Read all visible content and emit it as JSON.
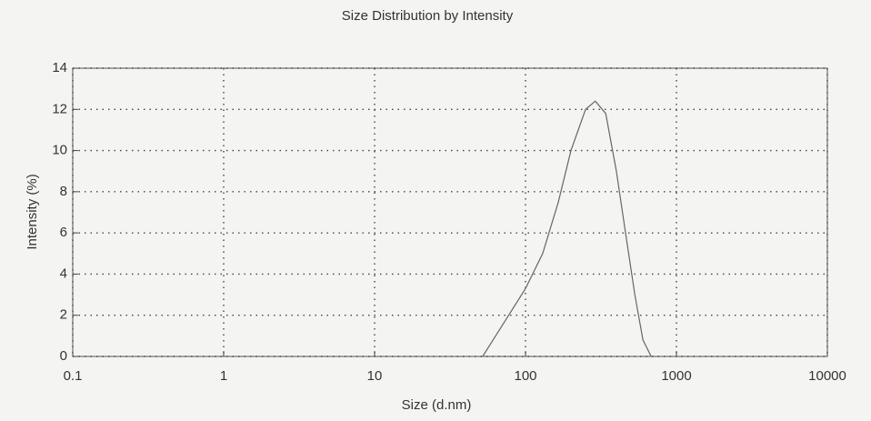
{
  "chart_data": {
    "type": "line",
    "title": "Size Distribution by Intensity",
    "x_label": "Size (d.nm)",
    "y_label": "Intensity (%)",
    "x_scale": "log",
    "grid": true,
    "xlim": [
      0.1,
      10000
    ],
    "xticks": [
      0.1,
      1,
      10,
      100,
      1000,
      10000
    ],
    "ylim": [
      0,
      14
    ],
    "yticks": [
      0,
      2,
      4,
      6,
      8,
      10,
      12,
      14
    ],
    "series": [
      {
        "name": "Intensity",
        "color": "#666666",
        "x": [
          52,
          70,
          100,
          130,
          165,
          200,
          250,
          290,
          340,
          400,
          460,
          530,
          600,
          680
        ],
        "values": [
          0,
          1.5,
          3.3,
          5,
          7.5,
          10,
          12,
          12.4,
          11.8,
          9,
          6,
          3,
          0.8,
          0
        ]
      }
    ]
  }
}
